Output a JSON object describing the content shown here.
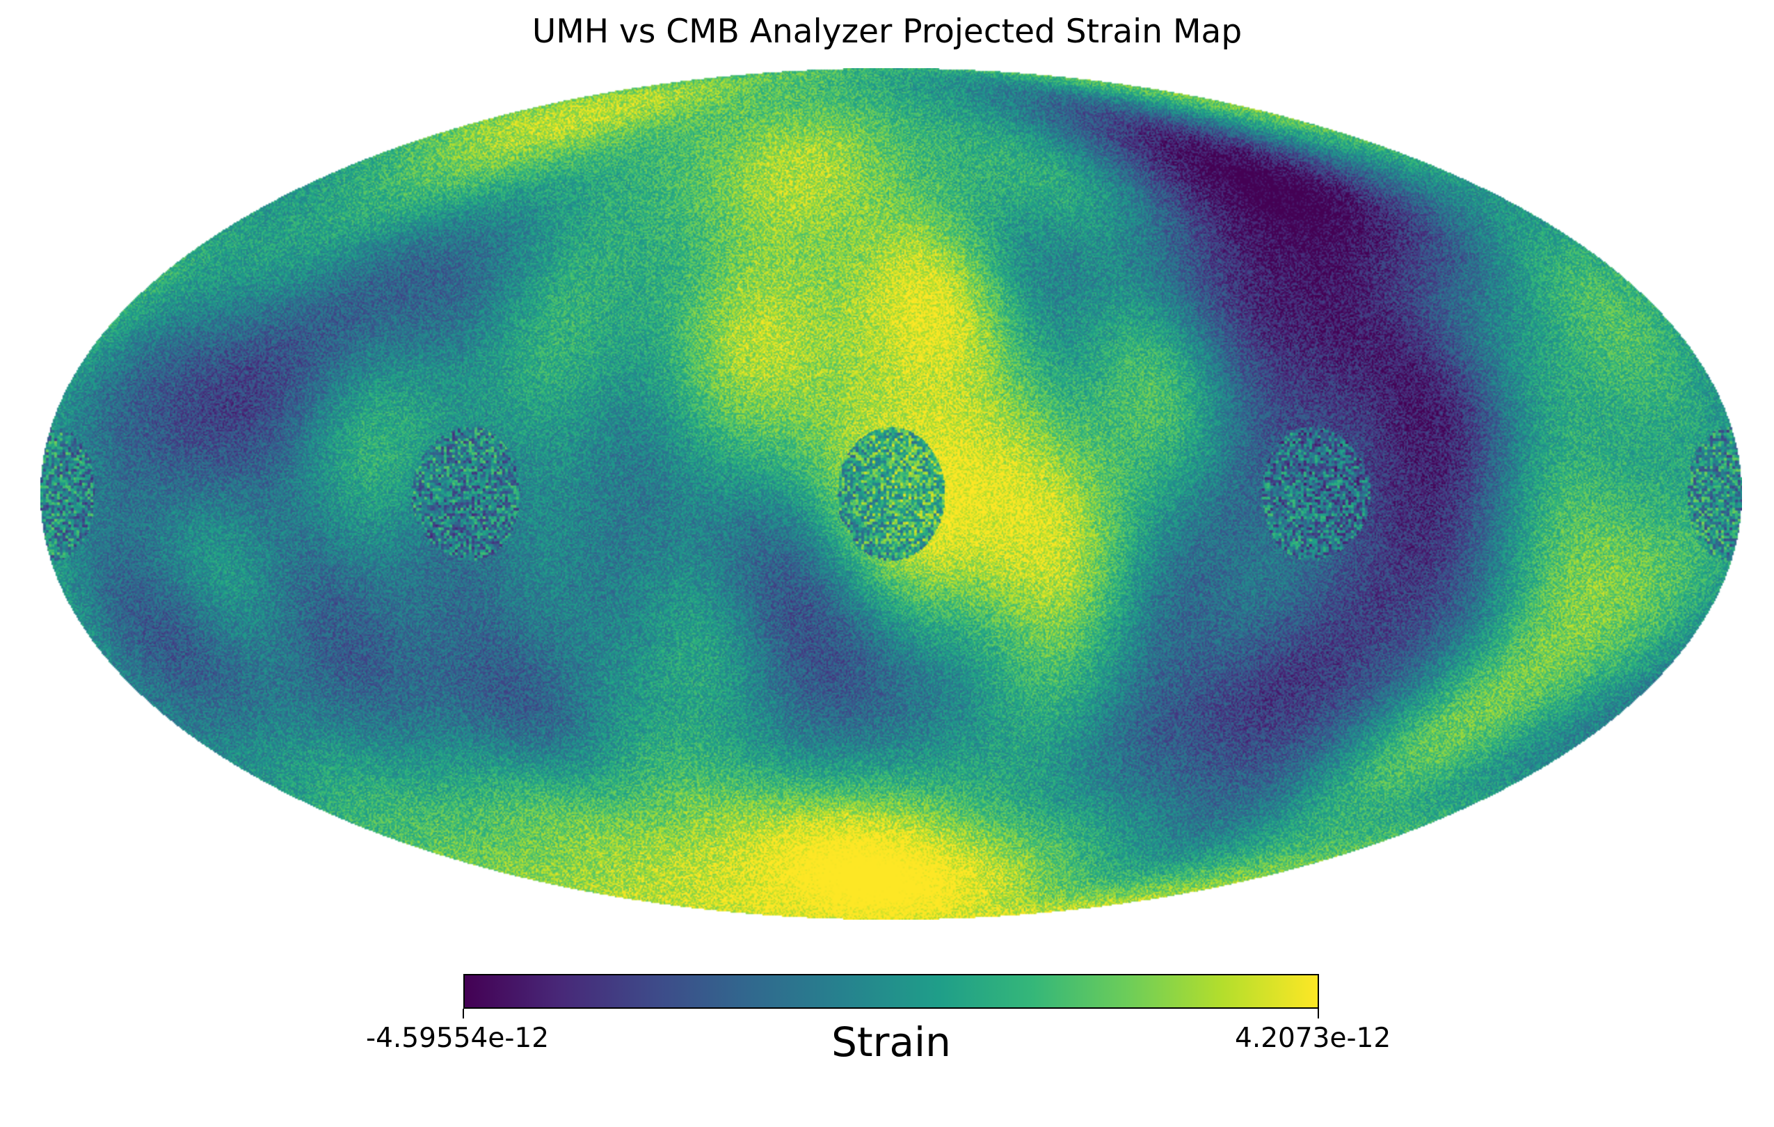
{
  "chart_data": {
    "type": "heatmap",
    "projection": "mollweide",
    "title": "UMH vs CMB Analyzer Projected Strain Map",
    "colorbar": {
      "label": "Strain",
      "min_label": "-4.59554e-12",
      "max_label": "4.2073e-12",
      "min": -4.59554e-12,
      "max": 4.2073e-12,
      "colormap": "viridis",
      "orientation": "horizontal",
      "placement": "bottom"
    },
    "field": {
      "description_of_structure": null,
      "features": [
        {
          "type": "circular-patch",
          "lon": 0,
          "lat": 0
        },
        {
          "type": "circular-patch",
          "lon": 90,
          "lat": 0
        },
        {
          "type": "circular-patch",
          "lon": -90,
          "lat": 0
        },
        {
          "type": "circular-patch",
          "lon": 180,
          "lat": 0
        }
      ]
    },
    "colors": [
      "#440154",
      "#482878",
      "#3e4a89",
      "#31688e",
      "#26828e",
      "#1f9e89",
      "#35b779",
      "#6dcd59",
      "#b4de2c",
      "#fde725"
    ]
  }
}
